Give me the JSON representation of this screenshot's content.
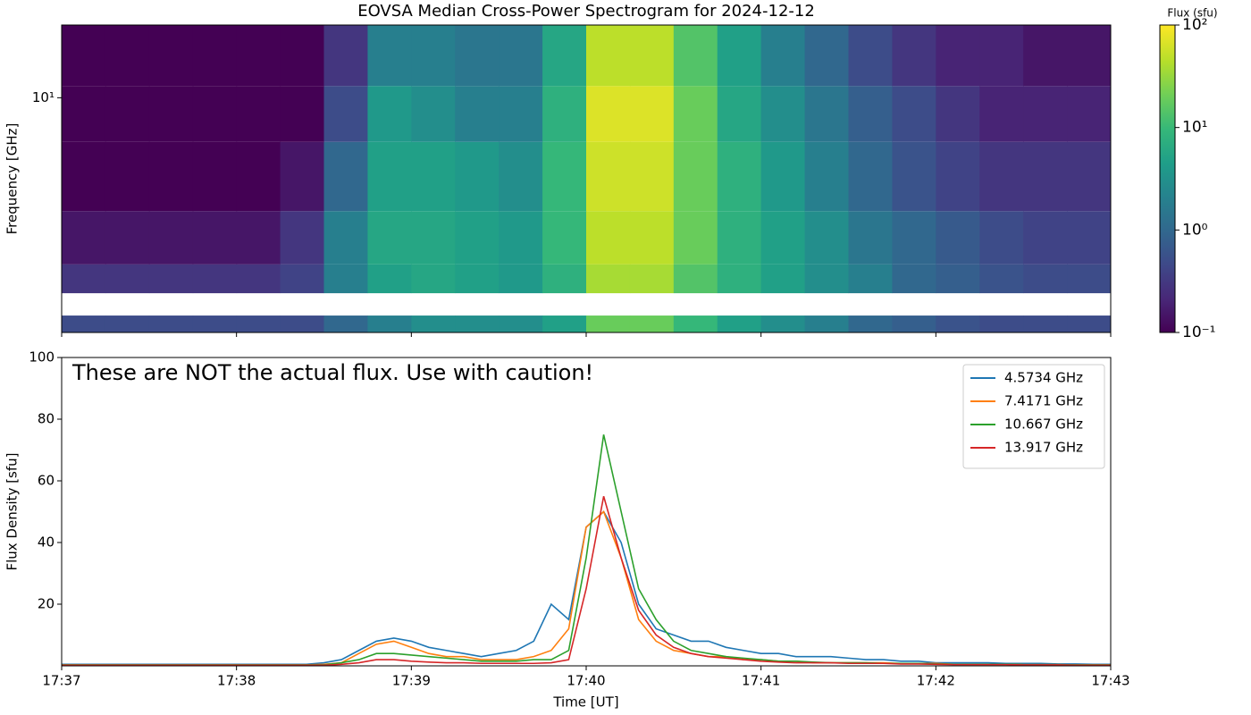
{
  "chart_data": [
    {
      "type": "heatmap",
      "title": "EOVSA Median Cross-Power Spectrogram for 2024-12-12",
      "ylabel": "Frequency [GHz]",
      "colorbar_label": "Flux (sfu)",
      "colormap": "viridis",
      "yscale": "log",
      "zscale": "log",
      "xlim": [
        1057,
        1063
      ],
      "xticks": [
        1057,
        1058,
        1059,
        1060,
        1061,
        1062,
        1063
      ],
      "ylim": [
        1.5,
        18
      ],
      "yticks": [
        {
          "value": 10,
          "label": "10¹"
        }
      ],
      "zlim": [
        0.1,
        100
      ],
      "zticks": [
        {
          "value": 0.1,
          "label": "10⁻¹"
        },
        {
          "value": 1,
          "label": "10⁰"
        },
        {
          "value": 10,
          "label": "10¹"
        },
        {
          "value": 100,
          "label": "10²"
        }
      ],
      "x_edges": [
        1057,
        1057.25,
        1057.5,
        1057.75,
        1058,
        1058.25,
        1058.5,
        1058.75,
        1059,
        1059.25,
        1059.5,
        1059.75,
        1060,
        1060.25,
        1060.5,
        1060.75,
        1061,
        1061.25,
        1061.5,
        1061.75,
        1062,
        1062.25,
        1062.5,
        1062.75,
        1063
      ],
      "y_edges": [
        1.5,
        1.72,
        2.06,
        2.6,
        4,
        7,
        11,
        18
      ],
      "z": [
        [
          0.5,
          0.5,
          0.5,
          0.5,
          0.5,
          0.5,
          1,
          2,
          3,
          3,
          3,
          5,
          20,
          20,
          10,
          5,
          3,
          2,
          1,
          0.8,
          0.6,
          0.5,
          0.5,
          0.5
        ],
        [
          null,
          null,
          null,
          null,
          null,
          null,
          null,
          null,
          null,
          null,
          null,
          null,
          null,
          null,
          null,
          null,
          null,
          null,
          null,
          null,
          null,
          null,
          null,
          null
        ],
        [
          0.3,
          0.3,
          0.3,
          0.3,
          0.3,
          0.4,
          2,
          5,
          6,
          5,
          4,
          8,
          40,
          40,
          15,
          8,
          5,
          3,
          2,
          1,
          0.8,
          0.6,
          0.5,
          0.5
        ],
        [
          0.15,
          0.15,
          0.15,
          0.15,
          0.15,
          0.3,
          2,
          6,
          6,
          5,
          4,
          10,
          50,
          50,
          20,
          8,
          5,
          3,
          1.5,
          1,
          0.7,
          0.5,
          0.4,
          0.4
        ],
        [
          0.1,
          0.1,
          0.1,
          0.1,
          0.1,
          0.15,
          1,
          5,
          5,
          4,
          3,
          10,
          60,
          60,
          20,
          8,
          4,
          2,
          1,
          0.6,
          0.4,
          0.3,
          0.3,
          0.3
        ],
        [
          0.1,
          0.1,
          0.1,
          0.1,
          0.1,
          0.1,
          0.5,
          4,
          3,
          2,
          2,
          8,
          70,
          70,
          20,
          6,
          3,
          1.5,
          0.8,
          0.5,
          0.3,
          0.2,
          0.2,
          0.2
        ],
        [
          0.1,
          0.1,
          0.1,
          0.1,
          0.1,
          0.1,
          0.3,
          2,
          2,
          1.5,
          1.5,
          6,
          50,
          50,
          15,
          5,
          2,
          1,
          0.5,
          0.3,
          0.2,
          0.2,
          0.15,
          0.15
        ]
      ]
    },
    {
      "type": "line",
      "annotation": "These are NOT the actual flux. Use with caution!",
      "xlabel": "Time [UT]",
      "ylabel": "Flux Density [sfu]",
      "xlim": [
        1057,
        1063
      ],
      "xticks": [
        {
          "value": 1057,
          "label": "17:37"
        },
        {
          "value": 1058,
          "label": "17:38"
        },
        {
          "value": 1059,
          "label": "17:39"
        },
        {
          "value": 1060,
          "label": "17:40"
        },
        {
          "value": 1061,
          "label": "17:41"
        },
        {
          "value": 1062,
          "label": "17:42"
        },
        {
          "value": 1063,
          "label": "17:43"
        }
      ],
      "ylim": [
        0,
        100
      ],
      "yticks": [
        20,
        40,
        60,
        80,
        100
      ],
      "legend": "upper right",
      "x": [
        1057,
        1057.1,
        1057.2,
        1057.3,
        1057.4,
        1057.5,
        1057.6,
        1057.7,
        1057.8,
        1057.9,
        1058,
        1058.1,
        1058.2,
        1058.3,
        1058.4,
        1058.5,
        1058.6,
        1058.7,
        1058.8,
        1058.9,
        1059,
        1059.1,
        1059.2,
        1059.3,
        1059.4,
        1059.5,
        1059.6,
        1059.7,
        1059.8,
        1059.9,
        1060,
        1060.1,
        1060.2,
        1060.3,
        1060.4,
        1060.5,
        1060.6,
        1060.7,
        1060.8,
        1060.9,
        1061,
        1061.1,
        1061.2,
        1061.3,
        1061.4,
        1061.5,
        1061.6,
        1061.7,
        1061.8,
        1061.9,
        1062,
        1062.1,
        1062.2,
        1062.3,
        1062.4,
        1062.5,
        1062.6,
        1062.7,
        1062.8,
        1062.9,
        1063
      ],
      "series": [
        {
          "name": "4.5734 GHz",
          "color": "#1f77b4",
          "values": [
            0.5,
            0.5,
            0.5,
            0.5,
            0.5,
            0.5,
            0.5,
            0.5,
            0.5,
            0.5,
            0.5,
            0.5,
            0.5,
            0.5,
            0.5,
            1,
            2,
            5,
            8,
            9,
            8,
            6,
            5,
            4,
            3,
            4,
            5,
            8,
            20,
            15,
            45,
            50,
            40,
            20,
            12,
            10,
            8,
            8,
            6,
            5,
            4,
            4,
            3,
            3,
            3,
            2.5,
            2,
            2,
            1.5,
            1.5,
            1,
            1,
            1,
            1,
            0.8,
            0.8,
            0.8,
            0.6,
            0.6,
            0.5,
            0.5
          ]
        },
        {
          "name": "7.4171 GHz",
          "color": "#ff7f0e",
          "values": [
            0.3,
            0.3,
            0.3,
            0.3,
            0.3,
            0.3,
            0.3,
            0.3,
            0.3,
            0.3,
            0.3,
            0.3,
            0.3,
            0.3,
            0.3,
            0.5,
            1,
            4,
            7,
            8,
            6,
            4,
            3,
            3,
            2,
            2,
            2,
            3,
            5,
            12,
            45,
            50,
            35,
            15,
            8,
            5,
            4,
            3,
            3,
            2,
            2,
            1.5,
            1.5,
            1,
            1,
            1,
            1,
            1,
            0.8,
            0.8,
            0.8,
            0.5,
            0.5,
            0.5,
            0.5,
            0.4,
            0.4,
            0.4,
            0.3,
            0.3,
            0.3
          ]
        },
        {
          "name": "10.667 GHz",
          "color": "#2ca02c",
          "values": [
            0.3,
            0.3,
            0.3,
            0.3,
            0.3,
            0.3,
            0.3,
            0.3,
            0.3,
            0.3,
            0.3,
            0.3,
            0.3,
            0.3,
            0.3,
            0.3,
            1,
            2,
            4,
            4,
            3.5,
            3,
            2.5,
            2,
            1.5,
            1.5,
            1.5,
            2,
            2,
            5,
            35,
            75,
            50,
            25,
            15,
            8,
            5,
            4,
            3,
            2.5,
            2,
            1.5,
            1.5,
            1.2,
            1,
            1,
            1,
            0.8,
            0.8,
            0.8,
            0.6,
            0.5,
            0.5,
            0.5,
            0.5,
            0.4,
            0.4,
            0.4,
            0.3,
            0.3,
            0.3
          ]
        },
        {
          "name": "13.917 GHz",
          "color": "#d62728",
          "values": [
            0.2,
            0.2,
            0.2,
            0.2,
            0.2,
            0.2,
            0.2,
            0.2,
            0.2,
            0.2,
            0.2,
            0.2,
            0.2,
            0.2,
            0.2,
            0.2,
            0.5,
            1,
            2,
            2,
            1.5,
            1.2,
            1,
            1,
            0.8,
            0.8,
            0.8,
            0.8,
            1,
            2,
            25,
            55,
            35,
            18,
            10,
            6,
            4,
            3,
            2.5,
            2,
            1.5,
            1.2,
            1,
            1,
            1,
            0.8,
            0.8,
            0.8,
            0.6,
            0.6,
            0.5,
            0.4,
            0.4,
            0.4,
            0.4,
            0.3,
            0.3,
            0.3,
            0.2,
            0.2,
            0.2
          ]
        }
      ]
    }
  ]
}
